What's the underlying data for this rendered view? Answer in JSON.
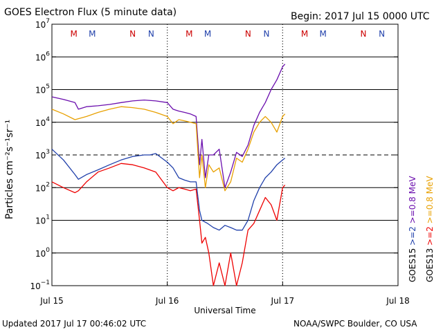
{
  "chart_data": {
    "type": "line",
    "title": "GOES Electron Flux (5 minute data)",
    "begin_label": "Begin: 2017 Jul 15 0000 UTC",
    "xlabel": "Universal Time",
    "ylabel": "Particles cm⁻²s⁻¹sr⁻¹",
    "x_unit": "days since 2017 Jul 15 0000 UTC",
    "xlim": [
      0,
      3
    ],
    "y_scale": "log",
    "ylim": [
      0.1,
      10000000
    ],
    "x_ticks": [
      {
        "value": 0,
        "label": "Jul 15"
      },
      {
        "value": 1,
        "label": "Jul 16"
      },
      {
        "value": 2,
        "label": "Jul 17"
      },
      {
        "value": 3,
        "label": "Jul 18"
      }
    ],
    "y_ticks": [
      {
        "value": 10000000,
        "base": "10",
        "exp": "7"
      },
      {
        "value": 1000000,
        "base": "10",
        "exp": "6"
      },
      {
        "value": 100000,
        "base": "10",
        "exp": "5"
      },
      {
        "value": 10000,
        "base": "10",
        "exp": "4"
      },
      {
        "value": 1000,
        "base": "10",
        "exp": "3"
      },
      {
        "value": 100,
        "base": "10",
        "exp": "2"
      },
      {
        "value": 10,
        "base": "10",
        "exp": "1"
      },
      {
        "value": 1,
        "base": "10",
        "exp": "0"
      },
      {
        "value": 0.1,
        "base": "10",
        "exp": "−1"
      }
    ],
    "threshold_line": {
      "value": 1000,
      "style": "dashed"
    },
    "markers": [
      {
        "x": 0.19,
        "label": "M",
        "color": "#cc0000"
      },
      {
        "x": 0.35,
        "label": "M",
        "color": "#1f3faa"
      },
      {
        "x": 0.7,
        "label": "N",
        "color": "#cc0000"
      },
      {
        "x": 0.86,
        "label": "N",
        "color": "#1f3faa"
      },
      {
        "x": 1.19,
        "label": "M",
        "color": "#cc0000"
      },
      {
        "x": 1.35,
        "label": "M",
        "color": "#1f3faa"
      },
      {
        "x": 1.7,
        "label": "N",
        "color": "#cc0000"
      },
      {
        "x": 1.86,
        "label": "N",
        "color": "#1f3faa"
      },
      {
        "x": 2.19,
        "label": "M",
        "color": "#cc0000"
      },
      {
        "x": 2.35,
        "label": "M",
        "color": "#1f3faa"
      },
      {
        "x": 2.7,
        "label": "N",
        "color": "#cc0000"
      },
      {
        "x": 2.86,
        "label": "N",
        "color": "#1f3faa"
      }
    ],
    "series": [
      {
        "name": "GOES15 >=0.8 MeV",
        "color": "#6a0dad",
        "x": [
          0,
          0.1,
          0.2,
          0.23,
          0.3,
          0.4,
          0.5,
          0.6,
          0.7,
          0.8,
          0.9,
          1.0,
          1.05,
          1.1,
          1.15,
          1.2,
          1.25,
          1.28,
          1.3,
          1.33,
          1.36,
          1.4,
          1.45,
          1.5,
          1.55,
          1.6,
          1.65,
          1.7,
          1.75,
          1.8,
          1.85,
          1.9,
          1.95,
          2.0,
          2.02
        ],
        "values": [
          60000,
          50000,
          40000,
          25000,
          30000,
          32000,
          35000,
          40000,
          45000,
          48000,
          45000,
          40000,
          25000,
          22000,
          20000,
          18000,
          15000,
          500,
          3000,
          200,
          1000,
          1000,
          1500,
          100,
          300,
          1200,
          900,
          2000,
          8000,
          20000,
          40000,
          100000,
          200000,
          500000,
          600000
        ]
      },
      {
        "name": "GOES13 >=0.8 MeV",
        "color": "#e8a000",
        "x": [
          0,
          0.1,
          0.2,
          0.3,
          0.4,
          0.5,
          0.6,
          0.7,
          0.8,
          0.9,
          1.0,
          1.05,
          1.1,
          1.15,
          1.2,
          1.25,
          1.28,
          1.3,
          1.33,
          1.36,
          1.4,
          1.45,
          1.5,
          1.55,
          1.6,
          1.65,
          1.7,
          1.75,
          1.8,
          1.85,
          1.9,
          1.95,
          2.0,
          2.02
        ],
        "values": [
          25000,
          18000,
          12000,
          15000,
          20000,
          25000,
          30000,
          28000,
          25000,
          20000,
          15000,
          9000,
          12000,
          11000,
          10000,
          9000,
          200,
          1000,
          100,
          500,
          300,
          400,
          80,
          150,
          800,
          600,
          1500,
          5000,
          10000,
          15000,
          10000,
          5000,
          15000,
          18000
        ]
      },
      {
        "name": "GOES15 >=2 MeV",
        "color": "#1f3faa",
        "x": [
          0,
          0.1,
          0.2,
          0.23,
          0.3,
          0.4,
          0.5,
          0.6,
          0.7,
          0.8,
          0.85,
          0.9,
          1.0,
          1.05,
          1.1,
          1.15,
          1.2,
          1.25,
          1.28,
          1.3,
          1.35,
          1.4,
          1.45,
          1.5,
          1.55,
          1.6,
          1.65,
          1.7,
          1.75,
          1.8,
          1.85,
          1.9,
          1.95,
          2.0,
          2.02
        ],
        "values": [
          1500,
          700,
          250,
          180,
          250,
          350,
          500,
          700,
          900,
          1000,
          1000,
          1100,
          600,
          400,
          200,
          170,
          150,
          150,
          20,
          10,
          8,
          6,
          5,
          7,
          6,
          5,
          5,
          10,
          40,
          100,
          200,
          300,
          500,
          700,
          800
        ]
      },
      {
        "name": "GOES13 >=2 MeV",
        "color": "#ee0000",
        "x": [
          0,
          0.1,
          0.2,
          0.23,
          0.3,
          0.4,
          0.5,
          0.6,
          0.7,
          0.8,
          0.9,
          1.0,
          1.05,
          1.1,
          1.15,
          1.2,
          1.25,
          1.28,
          1.3,
          1.33,
          1.36,
          1.4,
          1.45,
          1.5,
          1.55,
          1.6,
          1.65,
          1.7,
          1.75,
          1.8,
          1.85,
          1.9,
          1.95,
          2.0,
          2.02
        ],
        "values": [
          150,
          100,
          70,
          80,
          150,
          300,
          400,
          550,
          500,
          400,
          300,
          100,
          80,
          100,
          90,
          80,
          90,
          10,
          2,
          3,
          1,
          0.1,
          0.5,
          0.1,
          1,
          0.1,
          0.5,
          5,
          8,
          20,
          50,
          30,
          10,
          100,
          120
        ]
      }
    ],
    "legend": [
      {
        "label": "GOES15",
        "color": "#000000"
      },
      {
        "label": ">=2",
        "color": "#1f3faa"
      },
      {
        "label": ">=0.8 MeV",
        "color": "#6a0dad"
      },
      {
        "label": "GOES13",
        "color": "#000000"
      },
      {
        "label": ">=2",
        "color": "#ee0000"
      },
      {
        "label": ">=0.8 MeV",
        "color": "#e8a000"
      }
    ]
  },
  "footer": {
    "updated": "Updated 2017 Jul 17 00:46:02 UTC",
    "credit": "NOAA/SWPC Boulder, CO USA"
  }
}
